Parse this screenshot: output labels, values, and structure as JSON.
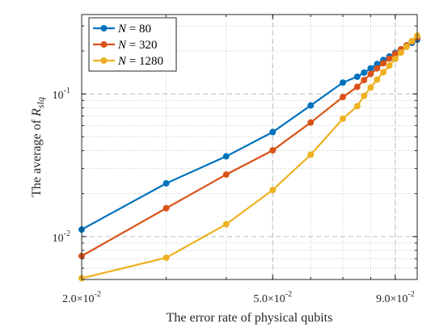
{
  "chart_data": {
    "type": "line",
    "xscale": "log",
    "yscale": "log",
    "xlim": [
      0.02,
      0.1
    ],
    "ylim": [
      0.005,
      0.36
    ],
    "xlabel": "The error rate of physical qubits",
    "ylabel_prefix": "The average of ",
    "ylabel_var": "R",
    "ylabel_sub": "slq",
    "x_ticks": [
      {
        "value": 0.02,
        "mantissa": "2.0",
        "base": "×10",
        "exp": "-2"
      },
      {
        "value": 0.05,
        "mantissa": "5.0",
        "base": "×10",
        "exp": "-2"
      },
      {
        "value": 0.09,
        "mantissa": "9.0",
        "base": "×10",
        "exp": "-2"
      }
    ],
    "y_ticks": [
      {
        "value": 0.01,
        "base": "10",
        "exp": "-2"
      },
      {
        "value": 0.1,
        "base": "10",
        "exp": "-1"
      }
    ],
    "grid": true,
    "legend_position": "top-left",
    "x": [
      0.02,
      0.03,
      0.04,
      0.05,
      0.06,
      0.07,
      0.075,
      0.0775,
      0.08,
      0.0825,
      0.085,
      0.0875,
      0.09,
      0.0925,
      0.095,
      0.0975,
      0.1
    ],
    "series": [
      {
        "name_var": "N",
        "name_val": " = 80",
        "color": "#0072BD",
        "values": [
          0.0112,
          0.0236,
          0.0365,
          0.054,
          0.083,
          0.12,
          0.132,
          0.141,
          0.151,
          0.162,
          0.173,
          0.183,
          0.194,
          0.205,
          0.217,
          0.228,
          0.24
        ]
      },
      {
        "name_var": "N",
        "name_val": " = 320",
        "color": "#D95319",
        "values": [
          0.0073,
          0.0158,
          0.0272,
          0.0402,
          0.063,
          0.095,
          0.112,
          0.125,
          0.138,
          0.151,
          0.164,
          0.177,
          0.191,
          0.205,
          0.219,
          0.233,
          0.248
        ]
      },
      {
        "name_var": "N",
        "name_val": " = 1280",
        "color": "#EDB120",
        "values": [
          0.0051,
          0.0071,
          0.0122,
          0.0212,
          0.0375,
          0.067,
          0.082,
          0.097,
          0.111,
          0.126,
          0.142,
          0.158,
          0.176,
          0.195,
          0.214,
          0.235,
          0.256
        ]
      }
    ]
  }
}
